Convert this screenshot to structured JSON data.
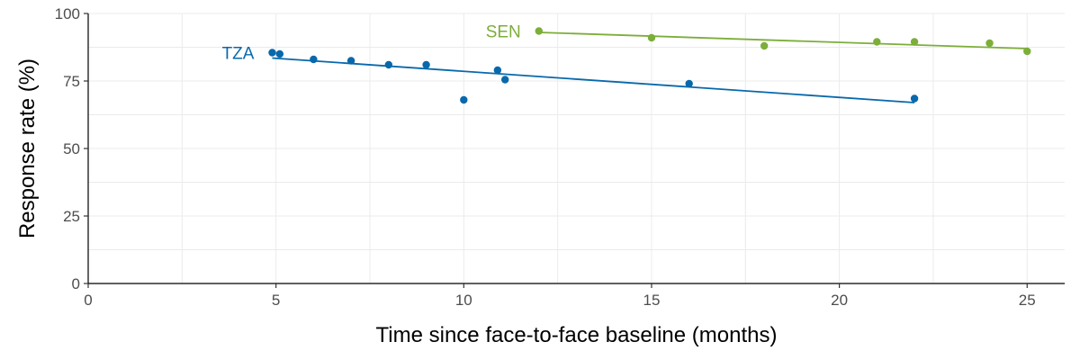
{
  "chart_data": {
    "type": "scatter",
    "xlabel": "Time since face-to-face baseline (months)",
    "ylabel": "Response rate (%)",
    "xlim": [
      0,
      26
    ],
    "ylim": [
      0,
      100
    ],
    "x_ticks": [
      0,
      5,
      10,
      15,
      20,
      25
    ],
    "y_ticks": [
      0,
      25,
      50,
      75,
      100
    ],
    "grid": true,
    "legend": "inline labels",
    "series": [
      {
        "name": "TZA",
        "color": "#0868ac",
        "points": [
          {
            "x": 4.9,
            "y": 85.5
          },
          {
            "x": 5.1,
            "y": 85
          },
          {
            "x": 6,
            "y": 83
          },
          {
            "x": 7,
            "y": 82.5
          },
          {
            "x": 8,
            "y": 81
          },
          {
            "x": 9,
            "y": 81
          },
          {
            "x": 10,
            "y": 68
          },
          {
            "x": 10.9,
            "y": 79
          },
          {
            "x": 11.1,
            "y": 75.5
          },
          {
            "x": 16,
            "y": 74
          },
          {
            "x": 22,
            "y": 68.5
          }
        ],
        "trend": [
          {
            "x": 4.9,
            "y": 83.5
          },
          {
            "x": 22,
            "y": 67
          }
        ]
      },
      {
        "name": "SEN",
        "color": "#7cae3a",
        "points": [
          {
            "x": 12,
            "y": 93.5
          },
          {
            "x": 15,
            "y": 91
          },
          {
            "x": 18,
            "y": 88
          },
          {
            "x": 21,
            "y": 89.5
          },
          {
            "x": 22,
            "y": 89.5
          },
          {
            "x": 24,
            "y": 89
          },
          {
            "x": 25,
            "y": 86
          }
        ],
        "trend": [
          {
            "x": 12,
            "y": 93
          },
          {
            "x": 25,
            "y": 87
          }
        ]
      }
    ]
  }
}
